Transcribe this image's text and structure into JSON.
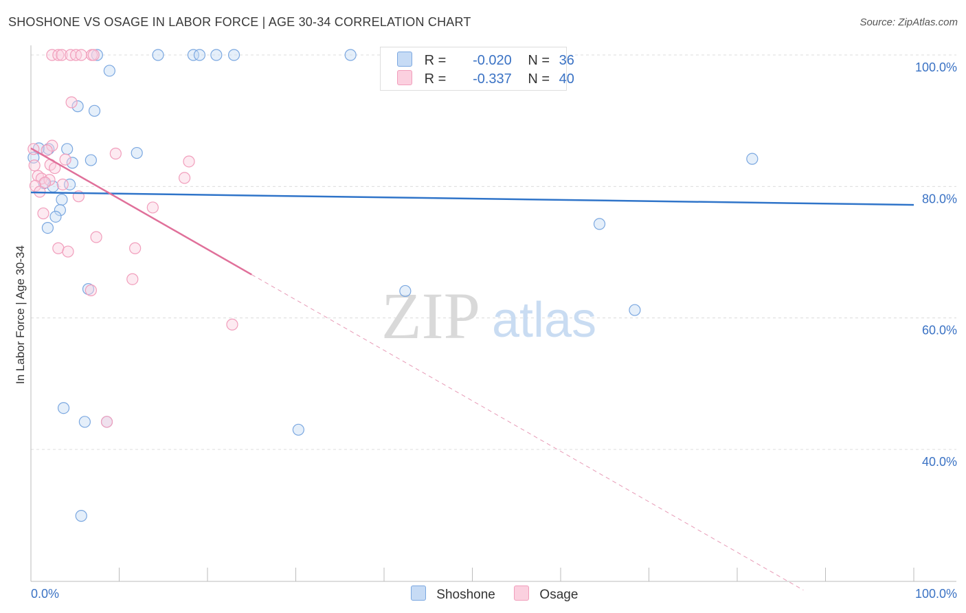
{
  "title": "SHOSHONE VS OSAGE IN LABOR FORCE | AGE 30-34 CORRELATION CHART",
  "source": "Source: ZipAtlas.com",
  "watermark": {
    "zip": "ZIP",
    "atlas": "atlas"
  },
  "legend": {
    "rows": [
      {
        "r_label": "R =",
        "r_value": "-0.020",
        "n_label": "N =",
        "n_value": "36",
        "color": "#7aa7e0"
      },
      {
        "r_label": "R =",
        "r_value": "-0.337",
        "n_label": "N =",
        "n_value": "40",
        "color": "#f19dbb"
      }
    ]
  },
  "bottom_legend": [
    {
      "label": "Shoshone",
      "color": "#7aa7e0"
    },
    {
      "label": "Osage",
      "color": "#f19dbb"
    }
  ],
  "chart_data": {
    "type": "scatter",
    "title": "SHOSHONE VS OSAGE IN LABOR FORCE | AGE 30-34 CORRELATION CHART",
    "xlabel": "",
    "ylabel": "In Labor Force | Age 30-34",
    "xlim": [
      0,
      100
    ],
    "ylim": [
      20,
      102
    ],
    "x_tick_labels": [
      "0.0%",
      "100.0%"
    ],
    "y_ticks": [
      40,
      60,
      80,
      100
    ],
    "y_tick_labels": [
      "40.0%",
      "60.0%",
      "80.0%",
      "100.0%"
    ],
    "grid": true,
    "legend_position": "top-center",
    "series": [
      {
        "name": "Shoshone",
        "color": "#7aa7e0",
        "trend": {
          "x": [
            0,
            100
          ],
          "y": [
            79.1,
            77.2
          ]
        },
        "points": [
          {
            "x": 7.5,
            "y": 100
          },
          {
            "x": 14.4,
            "y": 100
          },
          {
            "x": 18.4,
            "y": 100
          },
          {
            "x": 19.1,
            "y": 100
          },
          {
            "x": 21.0,
            "y": 100
          },
          {
            "x": 23.0,
            "y": 100
          },
          {
            "x": 36.2,
            "y": 100
          },
          {
            "x": 8.9,
            "y": 97.6
          },
          {
            "x": 5.3,
            "y": 92.2
          },
          {
            "x": 7.2,
            "y": 91.5
          },
          {
            "x": 0.9,
            "y": 85.8
          },
          {
            "x": 2.0,
            "y": 85.7
          },
          {
            "x": 4.1,
            "y": 85.7
          },
          {
            "x": 12.0,
            "y": 85.1
          },
          {
            "x": 6.8,
            "y": 84.0
          },
          {
            "x": 4.7,
            "y": 83.6
          },
          {
            "x": 81.7,
            "y": 84.2
          },
          {
            "x": 0.3,
            "y": 84.4
          },
          {
            "x": 1.5,
            "y": 80.5
          },
          {
            "x": 2.5,
            "y": 80.0
          },
          {
            "x": 4.4,
            "y": 80.3
          },
          {
            "x": 3.5,
            "y": 78.0
          },
          {
            "x": 3.3,
            "y": 76.4
          },
          {
            "x": 2.8,
            "y": 75.4
          },
          {
            "x": 1.9,
            "y": 73.7
          },
          {
            "x": 64.4,
            "y": 74.3
          },
          {
            "x": 6.5,
            "y": 64.4
          },
          {
            "x": 42.4,
            "y": 64.1
          },
          {
            "x": 68.4,
            "y": 61.2
          },
          {
            "x": 3.7,
            "y": 46.3
          },
          {
            "x": 6.1,
            "y": 44.2
          },
          {
            "x": 8.6,
            "y": 44.2
          },
          {
            "x": 30.3,
            "y": 43.0
          },
          {
            "x": 5.7,
            "y": 29.9
          }
        ]
      },
      {
        "name": "Osage",
        "color": "#f19dbb",
        "trend": {
          "x": [
            0,
            25
          ],
          "y": [
            85.8,
            66.6
          ]
        },
        "trend_dashed": {
          "x": [
            25,
            87.5
          ],
          "y": [
            66.6,
            18.6
          ]
        },
        "points": [
          {
            "x": 2.4,
            "y": 100
          },
          {
            "x": 3.1,
            "y": 100
          },
          {
            "x": 3.5,
            "y": 100
          },
          {
            "x": 4.5,
            "y": 100
          },
          {
            "x": 5.1,
            "y": 100
          },
          {
            "x": 5.7,
            "y": 100
          },
          {
            "x": 6.9,
            "y": 100
          },
          {
            "x": 7.1,
            "y": 100
          },
          {
            "x": 4.6,
            "y": 92.8
          },
          {
            "x": 2.4,
            "y": 86.2
          },
          {
            "x": 0.3,
            "y": 85.7
          },
          {
            "x": 1.8,
            "y": 85.5
          },
          {
            "x": 9.6,
            "y": 85.0
          },
          {
            "x": 3.9,
            "y": 84.1
          },
          {
            "x": 17.9,
            "y": 83.8
          },
          {
            "x": 2.2,
            "y": 83.3
          },
          {
            "x": 0.4,
            "y": 83.2
          },
          {
            "x": 2.7,
            "y": 82.8
          },
          {
            "x": 0.8,
            "y": 81.6
          },
          {
            "x": 1.2,
            "y": 81.2
          },
          {
            "x": 2.1,
            "y": 81.0
          },
          {
            "x": 17.4,
            "y": 81.3
          },
          {
            "x": 1.6,
            "y": 80.6
          },
          {
            "x": 3.6,
            "y": 80.3
          },
          {
            "x": 0.5,
            "y": 80.1
          },
          {
            "x": 1.0,
            "y": 79.2
          },
          {
            "x": 5.4,
            "y": 78.5
          },
          {
            "x": 13.8,
            "y": 76.8
          },
          {
            "x": 1.4,
            "y": 75.9
          },
          {
            "x": 7.4,
            "y": 72.3
          },
          {
            "x": 3.1,
            "y": 70.6
          },
          {
            "x": 11.8,
            "y": 70.6
          },
          {
            "x": 4.2,
            "y": 70.1
          },
          {
            "x": 11.5,
            "y": 65.9
          },
          {
            "x": 6.8,
            "y": 64.2
          },
          {
            "x": 22.8,
            "y": 59.0
          },
          {
            "x": 8.6,
            "y": 44.2
          }
        ]
      }
    ]
  }
}
